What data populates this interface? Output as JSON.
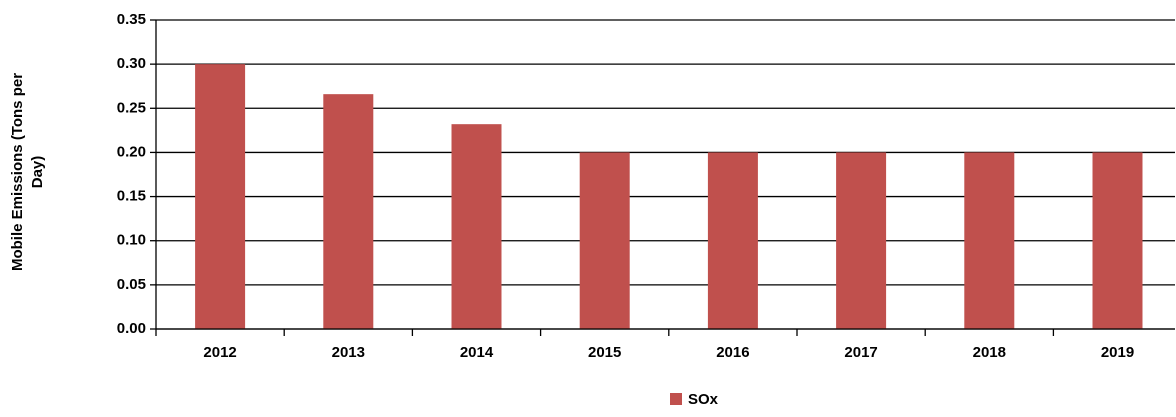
{
  "chart_data": {
    "type": "bar",
    "y_label": [
      "Mobile Emissions (Tons per",
      "Day)"
    ],
    "categories": [
      "2012",
      "2013",
      "2014",
      "2015",
      "2016",
      "2017",
      "2018",
      "2019"
    ],
    "series": [
      {
        "name": "SOx",
        "color": "#c0504d",
        "values": [
          0.3,
          0.266,
          0.232,
          0.2,
          0.2,
          0.2,
          0.2,
          0.2
        ]
      }
    ],
    "ylim": [
      0,
      0.35
    ],
    "yticks": [
      {
        "value": 0,
        "label": "0.00"
      },
      {
        "value": 0.05,
        "label": "0.05"
      },
      {
        "value": 0.1,
        "label": "0.10"
      },
      {
        "value": 0.15,
        "label": "0.15"
      },
      {
        "value": 0.2,
        "label": "0.20"
      },
      {
        "value": 0.25,
        "label": "0.25"
      },
      {
        "value": 0.3,
        "label": "0.30"
      },
      {
        "value": 0.35,
        "label": "0.35"
      }
    ],
    "grid": true,
    "legend": "bottom"
  }
}
